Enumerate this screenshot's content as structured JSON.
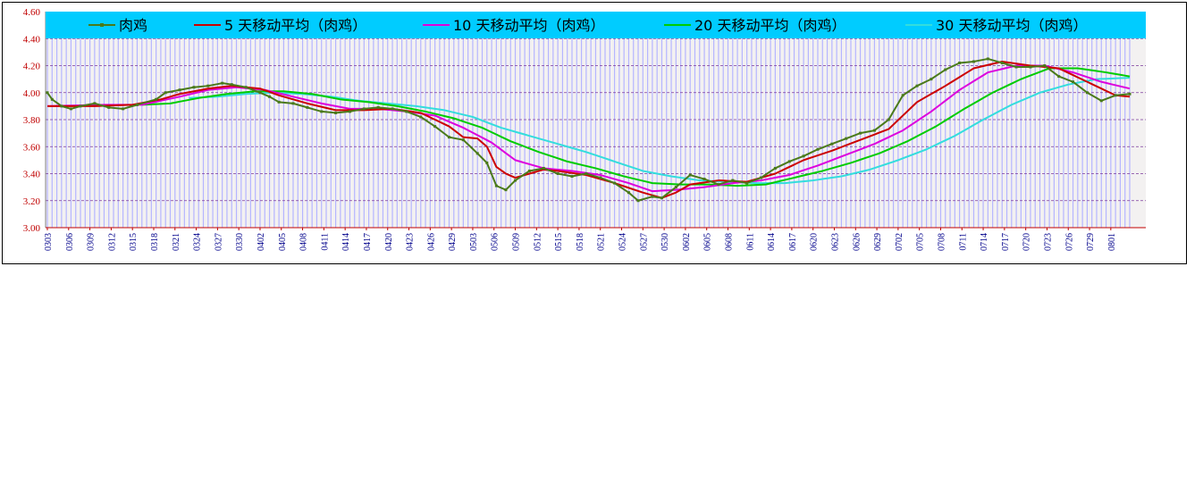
{
  "chart_data": {
    "type": "line",
    "title": "",
    "xlabel": "",
    "ylabel": "",
    "ylim": [
      3.0,
      4.6
    ],
    "y_ticks": [
      "4.60",
      "4.40",
      "4.20",
      "4.00",
      "3.80",
      "3.60",
      "3.40",
      "3.20",
      "3.00"
    ],
    "x_ticks": [
      "0303",
      "0306",
      "0309",
      "0312",
      "0315",
      "0318",
      "0321",
      "0324",
      "0327",
      "0330",
      "0402",
      "0405",
      "0408",
      "0411",
      "0414",
      "0417",
      "0420",
      "0423",
      "0426",
      "0429",
      "0503",
      "0506",
      "0509",
      "0512",
      "0515",
      "0518",
      "0521",
      "0524",
      "0527",
      "0530",
      "0602",
      "0605",
      "0608",
      "0611",
      "0614",
      "0617",
      "0620",
      "0623",
      "0626",
      "0629",
      "0702",
      "0705",
      "0708",
      "0711",
      "0714",
      "0717",
      "0720",
      "0723",
      "0726",
      "0729",
      "0801"
    ],
    "grid": true,
    "legend_position": "top",
    "colors": {
      "plot_background": "#f3f1f1",
      "legend_background": "#00ccff",
      "gridline": "#7b3a9c",
      "vertical_bars": "#b5b5ff"
    },
    "series": [
      {
        "name": "肉鸡",
        "color": "#4a7a1a",
        "marker": true,
        "keys": [
          [
            0,
            4.0
          ],
          [
            1,
            3.95
          ],
          [
            3,
            3.9
          ],
          [
            5,
            3.88
          ],
          [
            7,
            3.9
          ],
          [
            10,
            3.92
          ],
          [
            13,
            3.89
          ],
          [
            16,
            3.88
          ],
          [
            19,
            3.91
          ],
          [
            23,
            3.95
          ],
          [
            25,
            4.0
          ],
          [
            28,
            4.02
          ],
          [
            31,
            4.04
          ],
          [
            34,
            4.05
          ],
          [
            37,
            4.07
          ],
          [
            39,
            4.06
          ],
          [
            42,
            4.04
          ],
          [
            45,
            4.0
          ],
          [
            47,
            3.97
          ],
          [
            49,
            3.93
          ],
          [
            52,
            3.92
          ],
          [
            55,
            3.89
          ],
          [
            58,
            3.86
          ],
          [
            61,
            3.85
          ],
          [
            64,
            3.86
          ],
          [
            67,
            3.88
          ],
          [
            70,
            3.89
          ],
          [
            73,
            3.88
          ],
          [
            76,
            3.86
          ],
          [
            79,
            3.82
          ],
          [
            82,
            3.75
          ],
          [
            85,
            3.67
          ],
          [
            88,
            3.65
          ],
          [
            91,
            3.55
          ],
          [
            93,
            3.48
          ],
          [
            95,
            3.31
          ],
          [
            97,
            3.28
          ],
          [
            99,
            3.35
          ],
          [
            102,
            3.42
          ],
          [
            105,
            3.44
          ],
          [
            108,
            3.4
          ],
          [
            111,
            3.38
          ],
          [
            114,
            3.4
          ],
          [
            117,
            3.37
          ],
          [
            120,
            3.33
          ],
          [
            123,
            3.26
          ],
          [
            125,
            3.2
          ],
          [
            128,
            3.23
          ],
          [
            130,
            3.22
          ],
          [
            133,
            3.3
          ],
          [
            136,
            3.39
          ],
          [
            139,
            3.36
          ],
          [
            142,
            3.32
          ],
          [
            145,
            3.35
          ],
          [
            148,
            3.33
          ],
          [
            151,
            3.37
          ],
          [
            154,
            3.44
          ],
          [
            157,
            3.49
          ],
          [
            160,
            3.53
          ],
          [
            163,
            3.58
          ],
          [
            166,
            3.62
          ],
          [
            169,
            3.66
          ],
          [
            172,
            3.7
          ],
          [
            175,
            3.72
          ],
          [
            178,
            3.8
          ],
          [
            181,
            3.98
          ],
          [
            184,
            4.05
          ],
          [
            187,
            4.1
          ],
          [
            190,
            4.17
          ],
          [
            193,
            4.22
          ],
          [
            196,
            4.23
          ],
          [
            199,
            4.25
          ],
          [
            202,
            4.22
          ],
          [
            205,
            4.19
          ],
          [
            208,
            4.19
          ],
          [
            211,
            4.2
          ],
          [
            214,
            4.12
          ],
          [
            217,
            4.08
          ],
          [
            220,
            4.0
          ],
          [
            223,
            3.94
          ],
          [
            226,
            3.98
          ],
          [
            229,
            3.99
          ]
        ]
      },
      {
        "name": "5 天移动平均（肉鸡）",
        "color": "#cc0000",
        "marker": false,
        "keys": [
          [
            0,
            3.9
          ],
          [
            10,
            3.9
          ],
          [
            18,
            3.91
          ],
          [
            24,
            3.95
          ],
          [
            28,
            3.99
          ],
          [
            34,
            4.03
          ],
          [
            39,
            4.05
          ],
          [
            45,
            4.03
          ],
          [
            49,
            3.98
          ],
          [
            55,
            3.92
          ],
          [
            61,
            3.87
          ],
          [
            67,
            3.87
          ],
          [
            73,
            3.88
          ],
          [
            79,
            3.85
          ],
          [
            85,
            3.75
          ],
          [
            88,
            3.67
          ],
          [
            91,
            3.66
          ],
          [
            93,
            3.6
          ],
          [
            95,
            3.45
          ],
          [
            97,
            3.4
          ],
          [
            99,
            3.37
          ],
          [
            102,
            3.4
          ],
          [
            105,
            3.43
          ],
          [
            108,
            3.42
          ],
          [
            114,
            3.39
          ],
          [
            120,
            3.33
          ],
          [
            126,
            3.26
          ],
          [
            130,
            3.22
          ],
          [
            133,
            3.26
          ],
          [
            136,
            3.32
          ],
          [
            142,
            3.35
          ],
          [
            148,
            3.34
          ],
          [
            154,
            3.4
          ],
          [
            160,
            3.5
          ],
          [
            166,
            3.57
          ],
          [
            172,
            3.65
          ],
          [
            178,
            3.73
          ],
          [
            184,
            3.93
          ],
          [
            190,
            4.05
          ],
          [
            196,
            4.18
          ],
          [
            202,
            4.23
          ],
          [
            208,
            4.2
          ],
          [
            214,
            4.18
          ],
          [
            220,
            4.08
          ],
          [
            226,
            3.98
          ],
          [
            229,
            3.97
          ]
        ]
      },
      {
        "name": "10 天移动平均（肉鸡）",
        "color": "#dd00dd",
        "marker": false,
        "keys": [
          [
            0,
            3.9
          ],
          [
            12,
            3.91
          ],
          [
            20,
            3.91
          ],
          [
            28,
            3.97
          ],
          [
            34,
            4.02
          ],
          [
            40,
            4.04
          ],
          [
            46,
            4.02
          ],
          [
            52,
            3.97
          ],
          [
            58,
            3.92
          ],
          [
            64,
            3.88
          ],
          [
            70,
            3.88
          ],
          [
            76,
            3.86
          ],
          [
            82,
            3.83
          ],
          [
            88,
            3.74
          ],
          [
            94,
            3.63
          ],
          [
            99,
            3.5
          ],
          [
            105,
            3.44
          ],
          [
            111,
            3.42
          ],
          [
            117,
            3.39
          ],
          [
            123,
            3.33
          ],
          [
            128,
            3.27
          ],
          [
            133,
            3.28
          ],
          [
            139,
            3.3
          ],
          [
            145,
            3.33
          ],
          [
            151,
            3.35
          ],
          [
            157,
            3.39
          ],
          [
            163,
            3.46
          ],
          [
            169,
            3.54
          ],
          [
            175,
            3.62
          ],
          [
            181,
            3.72
          ],
          [
            187,
            3.86
          ],
          [
            193,
            4.02
          ],
          [
            199,
            4.15
          ],
          [
            205,
            4.2
          ],
          [
            211,
            4.2
          ],
          [
            217,
            4.15
          ],
          [
            223,
            4.08
          ],
          [
            229,
            4.03
          ]
        ]
      },
      {
        "name": "20 天移动平均（肉鸡）",
        "color": "#00cc00",
        "marker": false,
        "keys": [
          [
            20,
            3.91
          ],
          [
            26,
            3.92
          ],
          [
            32,
            3.96
          ],
          [
            38,
            3.99
          ],
          [
            44,
            4.01
          ],
          [
            50,
            4.01
          ],
          [
            56,
            3.99
          ],
          [
            62,
            3.95
          ],
          [
            68,
            3.93
          ],
          [
            74,
            3.9
          ],
          [
            80,
            3.86
          ],
          [
            86,
            3.81
          ],
          [
            92,
            3.74
          ],
          [
            98,
            3.64
          ],
          [
            104,
            3.56
          ],
          [
            110,
            3.49
          ],
          [
            116,
            3.44
          ],
          [
            122,
            3.38
          ],
          [
            128,
            3.33
          ],
          [
            134,
            3.32
          ],
          [
            140,
            3.32
          ],
          [
            146,
            3.31
          ],
          [
            152,
            3.32
          ],
          [
            158,
            3.37
          ],
          [
            164,
            3.42
          ],
          [
            170,
            3.48
          ],
          [
            176,
            3.55
          ],
          [
            182,
            3.64
          ],
          [
            188,
            3.75
          ],
          [
            194,
            3.88
          ],
          [
            200,
            4.0
          ],
          [
            206,
            4.1
          ],
          [
            212,
            4.18
          ],
          [
            218,
            4.18
          ],
          [
            224,
            4.15
          ],
          [
            229,
            4.12
          ]
        ]
      },
      {
        "name": "30 天移动平均（肉鸡）",
        "color": "#33dddd",
        "marker": false,
        "keys": [
          [
            30,
            3.96
          ],
          [
            36,
            3.97
          ],
          [
            42,
            3.99
          ],
          [
            48,
            4.0
          ],
          [
            54,
            3.99
          ],
          [
            60,
            3.97
          ],
          [
            66,
            3.94
          ],
          [
            72,
            3.92
          ],
          [
            78,
            3.9
          ],
          [
            84,
            3.87
          ],
          [
            90,
            3.82
          ],
          [
            96,
            3.74
          ],
          [
            102,
            3.68
          ],
          [
            108,
            3.62
          ],
          [
            114,
            3.56
          ],
          [
            120,
            3.49
          ],
          [
            126,
            3.42
          ],
          [
            132,
            3.38
          ],
          [
            138,
            3.35
          ],
          [
            144,
            3.34
          ],
          [
            150,
            3.33
          ],
          [
            156,
            3.33
          ],
          [
            162,
            3.35
          ],
          [
            168,
            3.38
          ],
          [
            174,
            3.43
          ],
          [
            180,
            3.5
          ],
          [
            186,
            3.58
          ],
          [
            192,
            3.68
          ],
          [
            198,
            3.8
          ],
          [
            204,
            3.91
          ],
          [
            210,
            4.0
          ],
          [
            216,
            4.06
          ],
          [
            222,
            4.1
          ],
          [
            229,
            4.11
          ]
        ]
      }
    ]
  }
}
